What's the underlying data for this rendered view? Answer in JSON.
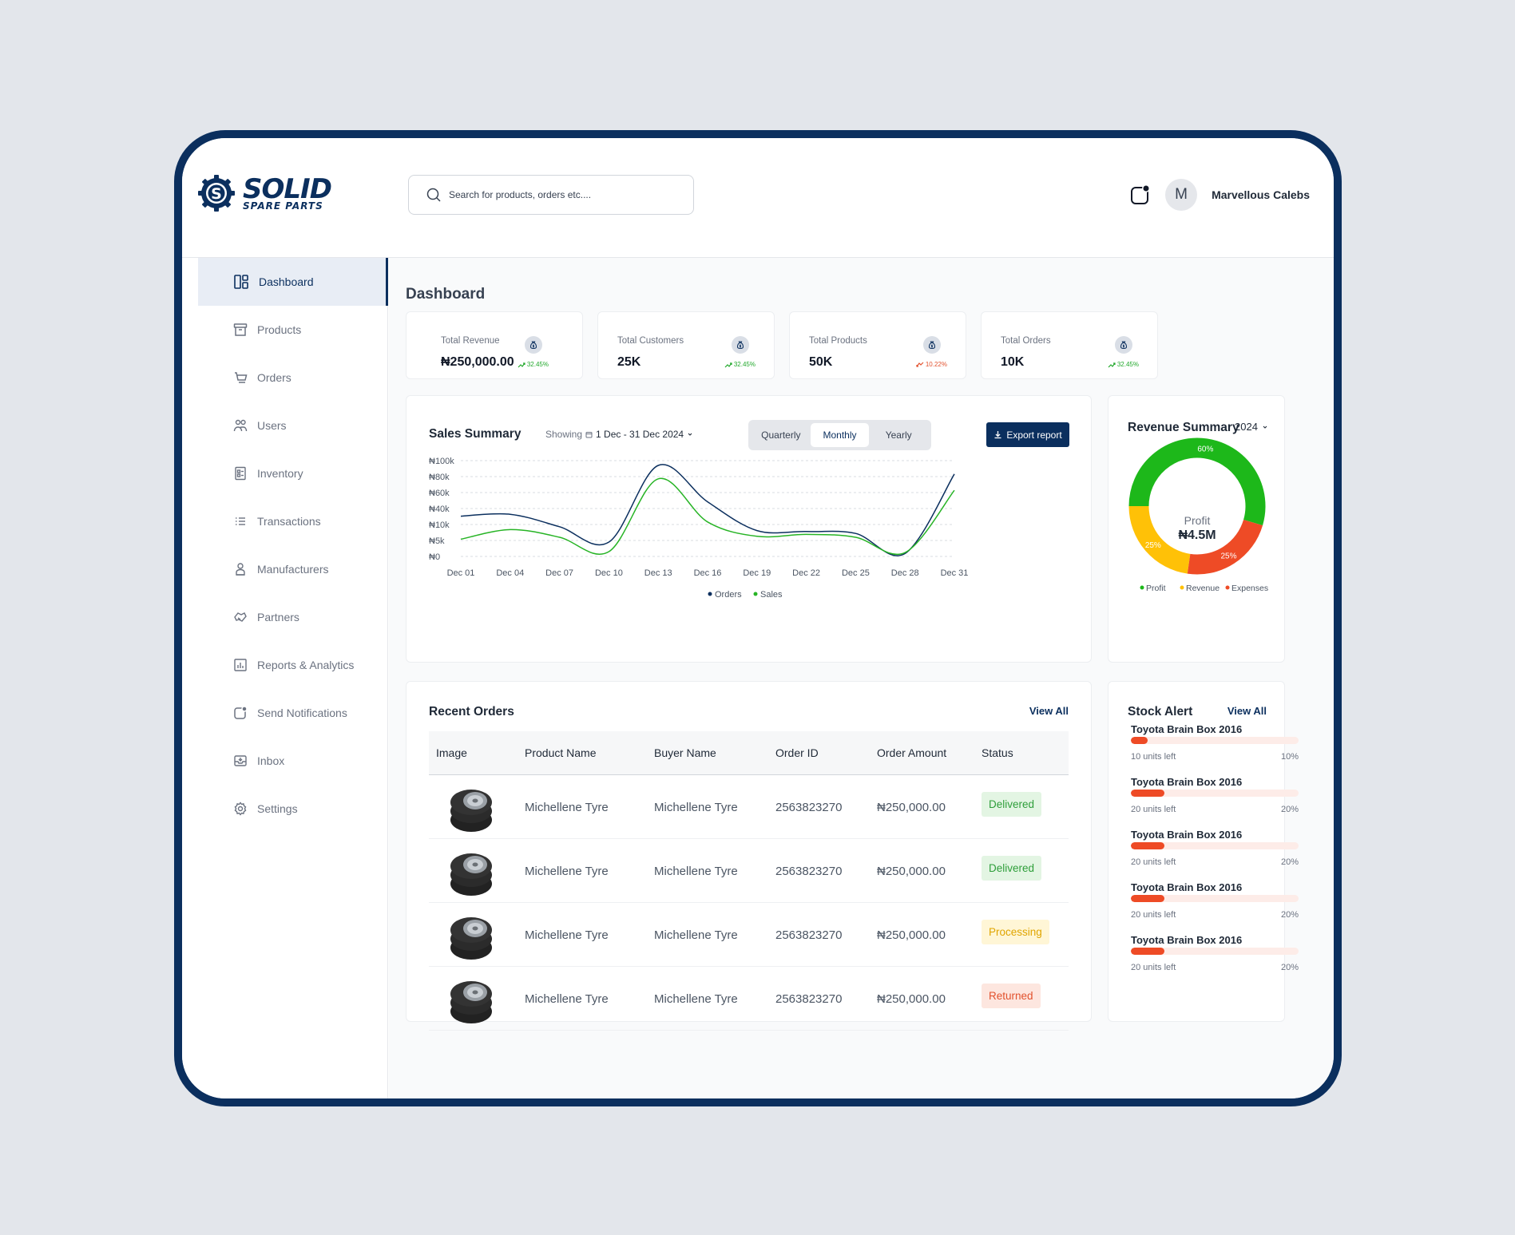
{
  "brand": {
    "name": "SOLID",
    "sub": "SPARE PARTS",
    "primary_color": "#0B2F5E"
  },
  "search": {
    "placeholder": "Search for products, orders etc...."
  },
  "user": {
    "initial": "M",
    "name": "Marvellous Calebs"
  },
  "sidebar": {
    "items": [
      {
        "label": "Dashboard",
        "icon": "dashboard-icon",
        "active": true
      },
      {
        "label": "Products",
        "icon": "box-icon"
      },
      {
        "label": "Orders",
        "icon": "cart-icon"
      },
      {
        "label": "Users",
        "icon": "users-icon"
      },
      {
        "label": "Inventory",
        "icon": "inventory-icon"
      },
      {
        "label": "Transactions",
        "icon": "list-icon"
      },
      {
        "label": "Manufacturers",
        "icon": "manufacturer-icon"
      },
      {
        "label": "Partners",
        "icon": "handshake-icon"
      },
      {
        "label": "Reports & Analytics",
        "icon": "chart-icon"
      },
      {
        "label": "Send Notifications",
        "icon": "notification-icon"
      },
      {
        "label": "Inbox",
        "icon": "inbox-icon"
      },
      {
        "label": "Settings",
        "icon": "gear-icon"
      }
    ]
  },
  "page": {
    "title": "Dashboard"
  },
  "stats": [
    {
      "label": "Total Revenue",
      "value": "₦250,000.00",
      "change": "32.45%",
      "trend": "up"
    },
    {
      "label": "Total Customers",
      "value": "25K",
      "change": "32.45%",
      "trend": "up"
    },
    {
      "label": "Total Products",
      "value": "50K",
      "change": "10.22%",
      "trend": "down"
    },
    {
      "label": "Total Orders",
      "value": "10K",
      "change": "32.45%",
      "trend": "up"
    }
  ],
  "sales_summary": {
    "title": "Sales Summary",
    "showing_label": "Showing",
    "range": "1 Dec - 31 Dec 2024",
    "tabs": [
      "Quarterly",
      "Monthly",
      "Yearly"
    ],
    "active_tab": "Monthly",
    "export_label": "Export report"
  },
  "revenue_summary": {
    "title": "Revenue Summary",
    "year": "2024",
    "center_label": "Profit",
    "center_value": "₦4.5M"
  },
  "recent_orders": {
    "title": "Recent Orders",
    "view_all": "View All",
    "columns": [
      "Image",
      "Product Name",
      "Buyer Name",
      "Order ID",
      "Order Amount",
      "Status"
    ],
    "rows": [
      {
        "product": "Michellene Tyre",
        "buyer": "Michellene Tyre",
        "order_id": "2563823270",
        "amount": "₦250,000.00",
        "status": "Delivered"
      },
      {
        "product": "Michellene Tyre",
        "buyer": "Michellene Tyre",
        "order_id": "2563823270",
        "amount": "₦250,000.00",
        "status": "Delivered"
      },
      {
        "product": "Michellene Tyre",
        "buyer": "Michellene Tyre",
        "order_id": "2563823270",
        "amount": "₦250,000.00",
        "status": "Processing"
      },
      {
        "product": "Michellene Tyre",
        "buyer": "Michellene Tyre",
        "order_id": "2563823270",
        "amount": "₦250,000.00",
        "status": "Returned"
      }
    ]
  },
  "stock_alert": {
    "title": "Stock Alert",
    "view_all": "View All",
    "items": [
      {
        "name": "Toyota Brain Box 2016",
        "units": "10 units left",
        "pct": "10%",
        "level": 0.1
      },
      {
        "name": "Toyota Brain Box 2016",
        "units": "20 units left",
        "pct": "20%",
        "level": 0.2
      },
      {
        "name": "Toyota Brain Box 2016",
        "units": "20 units left",
        "pct": "20%",
        "level": 0.2
      },
      {
        "name": "Toyota Brain Box 2016",
        "units": "20 units left",
        "pct": "20%",
        "level": 0.2
      },
      {
        "name": "Toyota Brain Box 2016",
        "units": "20 units left",
        "pct": "20%",
        "level": 0.2
      }
    ]
  },
  "status_colors": {
    "Delivered": {
      "bg": "#E3F5E3",
      "fg": "#2E9E3A"
    },
    "Processing": {
      "bg": "#FFF6D6",
      "fg": "#E0A500"
    },
    "Returned": {
      "bg": "#FDE6DF",
      "fg": "#E2512D"
    }
  },
  "chart_data": [
    {
      "type": "line",
      "x": [
        "Dec 01",
        "Dec 04",
        "Dec 07",
        "Dec 10",
        "Dec 13",
        "Dec 16",
        "Dec 19",
        "Dec 22",
        "Dec 25",
        "Dec 28",
        "Dec 31"
      ],
      "y_ticks": [
        "₦0",
        "₦5k",
        "₦10k",
        "₦40k",
        "₦60k",
        "₦80k",
        "₦100k"
      ],
      "series": [
        {
          "name": "Orders",
          "color": "#0B2F5E",
          "values": [
            42,
            44,
            31,
            15,
            95,
            57,
            27,
            26,
            24,
            3,
            86
          ]
        },
        {
          "name": "Sales",
          "color": "#27B425",
          "values": [
            18,
            28,
            20,
            5,
            81,
            36,
            21,
            23,
            20,
            4,
            69
          ]
        }
      ],
      "grid": true,
      "legend": "bottom"
    },
    {
      "type": "pie",
      "labels": [
        "Profit",
        "Revenue",
        "Expenses"
      ],
      "values": [
        60,
        25,
        25
      ],
      "value_labels": [
        "60%",
        "25%",
        "25%"
      ],
      "colors": [
        "#1DB81A",
        "#FFC107",
        "#EE4B26"
      ],
      "legend": "bottom"
    }
  ]
}
